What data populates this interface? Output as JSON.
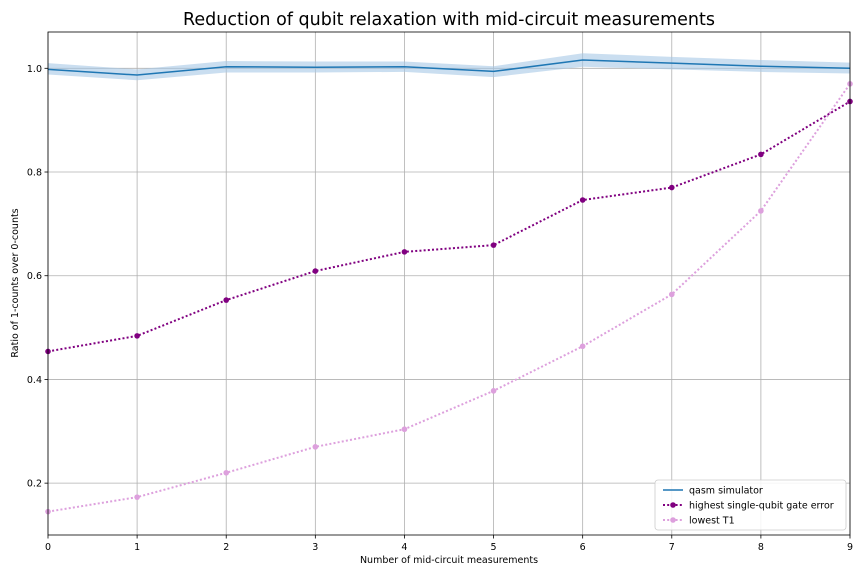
{
  "chart_data": {
    "type": "line",
    "title": "Reduction of qubit relaxation with mid-circuit measurements",
    "xlabel": "Number of mid-circuit measurements",
    "ylabel": "Ratio of 1-counts over 0-counts",
    "xlim": [
      0,
      9
    ],
    "ylim": [
      0.1,
      1.07
    ],
    "xticks": [
      0,
      1,
      2,
      3,
      4,
      5,
      6,
      7,
      8,
      9
    ],
    "yticks": [
      0.2,
      0.4,
      0.6,
      0.8,
      1.0
    ],
    "ytick_labels": [
      "0.2",
      "0.4",
      "0.6",
      "0.8",
      "1.0"
    ],
    "grid": true,
    "legend_position": "lower-right",
    "x": [
      0,
      1,
      2,
      3,
      4,
      5,
      6,
      7,
      8,
      9
    ],
    "series": [
      {
        "name": "qasm simulator",
        "style": "solid",
        "color": "#1f77b4",
        "band_color": "#a6c8e6",
        "values": [
          0.998,
          0.987,
          1.003,
          1.002,
          1.003,
          0.994,
          1.016,
          1.01,
          1.004,
          1.0
        ],
        "lower": [
          0.988,
          0.977,
          0.992,
          0.992,
          0.993,
          0.983,
          1.003,
          0.998,
          0.993,
          0.99
        ],
        "upper": [
          1.01,
          0.998,
          1.014,
          1.013,
          1.013,
          1.004,
          1.029,
          1.022,
          1.016,
          1.011
        ]
      },
      {
        "name": "highest single-qubit gate error",
        "style": "dotted",
        "color": "#800080",
        "values": [
          0.454,
          0.484,
          0.553,
          0.609,
          0.646,
          0.659,
          0.746,
          0.77,
          0.834,
          0.936
        ]
      },
      {
        "name": "lowest T1",
        "style": "dotted",
        "color": "#dda0dd",
        "values": [
          0.145,
          0.173,
          0.22,
          0.27,
          0.304,
          0.378,
          0.464,
          0.564,
          0.725,
          0.97
        ]
      }
    ]
  }
}
